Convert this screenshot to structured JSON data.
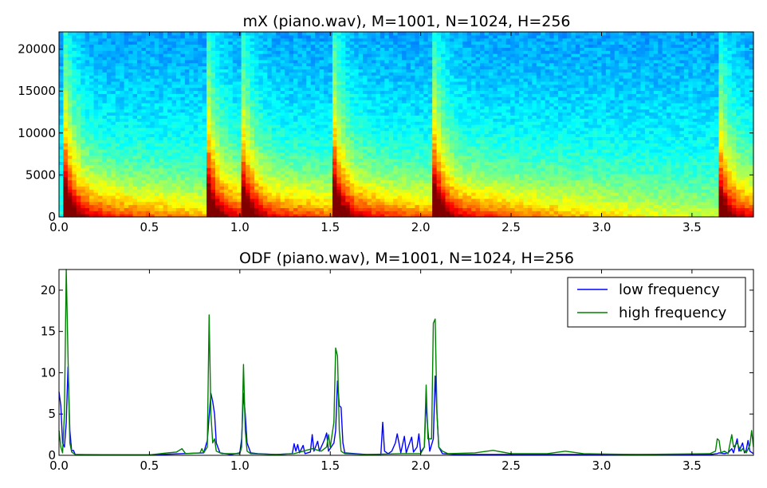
{
  "chart_data": [
    {
      "type": "heatmap",
      "title": "mX (piano.wav), M=1001, N=1024, H=256",
      "xlabel": "",
      "ylabel": "",
      "xlim": [
        0.0,
        3.84
      ],
      "ylim": [
        0,
        22050
      ],
      "xticks": [
        0.0,
        0.5,
        1.0,
        1.5,
        2.0,
        2.5,
        3.0,
        3.5
      ],
      "xtick_labels": [
        "0.0",
        "0.5",
        "1.0",
        "1.5",
        "2.0",
        "2.5",
        "3.0",
        "3.5"
      ],
      "yticks": [
        0,
        5000,
        10000,
        15000,
        20000
      ],
      "ytick_labels": [
        "0",
        "5000",
        "10000",
        "15000",
        "20000"
      ],
      "colormap": "jet",
      "note_onsets": [
        0.04,
        0.83,
        1.02,
        1.53,
        2.08,
        3.65
      ]
    },
    {
      "type": "line",
      "title": "ODF (piano.wav), M=1001, N=1024, H=256",
      "xlabel": "",
      "ylabel": "",
      "xlim": [
        0.0,
        3.84
      ],
      "ylim": [
        0,
        22.5
      ],
      "xticks": [
        0.0,
        0.5,
        1.0,
        1.5,
        2.0,
        2.5,
        3.0,
        3.5
      ],
      "xtick_labels": [
        "0.0",
        "0.5",
        "1.0",
        "1.5",
        "2.0",
        "2.5",
        "3.0",
        "3.5"
      ],
      "yticks": [
        0,
        5,
        10,
        15,
        20
      ],
      "ytick_labels": [
        "0",
        "5",
        "10",
        "15",
        "20"
      ],
      "grid": false,
      "legend_position": "top-right",
      "series": [
        {
          "name": "low frequency",
          "color": "#0000ff",
          "points": [
            [
              0.0,
              7.7
            ],
            [
              0.01,
              6.0
            ],
            [
              0.02,
              1.5
            ],
            [
              0.03,
              1.0
            ],
            [
              0.04,
              4.0
            ],
            [
              0.05,
              10.7
            ],
            [
              0.06,
              3.0
            ],
            [
              0.07,
              0.5
            ],
            [
              0.08,
              0.6
            ],
            [
              0.09,
              0.1
            ],
            [
              0.2,
              0.05
            ],
            [
              0.5,
              0.05
            ],
            [
              0.8,
              0.3
            ],
            [
              0.82,
              1.8
            ],
            [
              0.84,
              7.5
            ],
            [
              0.85,
              6.5
            ],
            [
              0.86,
              5.0
            ],
            [
              0.87,
              1.5
            ],
            [
              0.89,
              0.3
            ],
            [
              0.95,
              0.1
            ],
            [
              1.0,
              0.3
            ],
            [
              1.01,
              2.0
            ],
            [
              1.02,
              7.5
            ],
            [
              1.03,
              5.0
            ],
            [
              1.04,
              1.5
            ],
            [
              1.06,
              0.3
            ],
            [
              1.1,
              0.2
            ],
            [
              1.2,
              0.1
            ],
            [
              1.29,
              0.2
            ],
            [
              1.3,
              1.4
            ],
            [
              1.31,
              0.5
            ],
            [
              1.32,
              1.3
            ],
            [
              1.33,
              0.3
            ],
            [
              1.35,
              1.2
            ],
            [
              1.36,
              0.2
            ],
            [
              1.39,
              0.4
            ],
            [
              1.4,
              2.5
            ],
            [
              1.41,
              0.5
            ],
            [
              1.43,
              1.7
            ],
            [
              1.44,
              0.5
            ],
            [
              1.46,
              1.5
            ],
            [
              1.47,
              2.0
            ],
            [
              1.48,
              2.7
            ],
            [
              1.49,
              0.5
            ],
            [
              1.52,
              1.5
            ],
            [
              1.53,
              3.0
            ],
            [
              1.54,
              9.0
            ],
            [
              1.55,
              6.0
            ],
            [
              1.56,
              5.8
            ],
            [
              1.57,
              1.5
            ],
            [
              1.58,
              0.3
            ],
            [
              1.7,
              0.1
            ],
            [
              1.78,
              0.1
            ],
            [
              1.79,
              4.0
            ],
            [
              1.8,
              0.5
            ],
            [
              1.82,
              0.2
            ],
            [
              1.84,
              0.5
            ],
            [
              1.86,
              1.5
            ],
            [
              1.87,
              2.6
            ],
            [
              1.88,
              1.5
            ],
            [
              1.89,
              0.3
            ],
            [
              1.91,
              2.3
            ],
            [
              1.92,
              0.3
            ],
            [
              1.95,
              2.2
            ],
            [
              1.96,
              0.4
            ],
            [
              1.98,
              1.0
            ],
            [
              1.99,
              2.6
            ],
            [
              2.0,
              0.4
            ],
            [
              2.02,
              1.0
            ],
            [
              2.03,
              6.5
            ],
            [
              2.04,
              3.0
            ],
            [
              2.05,
              0.5
            ],
            [
              2.07,
              2.0
            ],
            [
              2.08,
              9.6
            ],
            [
              2.09,
              5.0
            ],
            [
              2.1,
              1.0
            ],
            [
              2.12,
              0.2
            ],
            [
              2.2,
              0.1
            ],
            [
              3.0,
              0.1
            ],
            [
              3.6,
              0.1
            ],
            [
              3.64,
              0.2
            ],
            [
              3.65,
              0.3
            ],
            [
              3.68,
              0.2
            ],
            [
              3.7,
              0.3
            ],
            [
              3.72,
              0.8
            ],
            [
              3.73,
              0.3
            ],
            [
              3.75,
              2.0
            ],
            [
              3.76,
              0.5
            ],
            [
              3.78,
              1.5
            ],
            [
              3.79,
              0.3
            ],
            [
              3.8,
              0.6
            ],
            [
              3.81,
              1.8
            ],
            [
              3.82,
              0.5
            ],
            [
              3.84,
              0.2
            ]
          ]
        },
        {
          "name": "high frequency",
          "color": "#008000",
          "points": [
            [
              0.0,
              3.0
            ],
            [
              0.01,
              1.0
            ],
            [
              0.02,
              0.3
            ],
            [
              0.03,
              5.0
            ],
            [
              0.04,
              22.5
            ],
            [
              0.05,
              12.0
            ],
            [
              0.06,
              1.5
            ],
            [
              0.07,
              0.4
            ],
            [
              0.09,
              0.1
            ],
            [
              0.5,
              0.05
            ],
            [
              0.6,
              0.3
            ],
            [
              0.65,
              0.4
            ],
            [
              0.68,
              0.8
            ],
            [
              0.7,
              0.2
            ],
            [
              0.78,
              0.3
            ],
            [
              0.79,
              0.8
            ],
            [
              0.8,
              0.3
            ],
            [
              0.82,
              1.0
            ],
            [
              0.83,
              17.0
            ],
            [
              0.84,
              5.0
            ],
            [
              0.85,
              1.5
            ],
            [
              0.86,
              2.0
            ],
            [
              0.87,
              0.5
            ],
            [
              0.9,
              0.2
            ],
            [
              1.0,
              0.2
            ],
            [
              1.01,
              1.0
            ],
            [
              1.02,
              11.0
            ],
            [
              1.03,
              3.0
            ],
            [
              1.04,
              0.5
            ],
            [
              1.06,
              0.2
            ],
            [
              1.2,
              0.1
            ],
            [
              1.3,
              0.2
            ],
            [
              1.35,
              0.5
            ],
            [
              1.4,
              0.8
            ],
            [
              1.45,
              0.5
            ],
            [
              1.48,
              1.0
            ],
            [
              1.49,
              2.5
            ],
            [
              1.5,
              1.0
            ],
            [
              1.52,
              4.0
            ],
            [
              1.53,
              13.0
            ],
            [
              1.54,
              12.0
            ],
            [
              1.55,
              3.0
            ],
            [
              1.56,
              0.5
            ],
            [
              1.58,
              0.2
            ],
            [
              1.7,
              0.1
            ],
            [
              1.9,
              0.2
            ],
            [
              2.0,
              0.2
            ],
            [
              2.02,
              1.0
            ],
            [
              2.03,
              8.5
            ],
            [
              2.04,
              2.0
            ],
            [
              2.06,
              2.0
            ],
            [
              2.07,
              16.0
            ],
            [
              2.08,
              16.5
            ],
            [
              2.09,
              5.0
            ],
            [
              2.1,
              1.0
            ],
            [
              2.12,
              0.5
            ],
            [
              2.15,
              0.2
            ],
            [
              2.3,
              0.3
            ],
            [
              2.4,
              0.6
            ],
            [
              2.5,
              0.2
            ],
            [
              2.7,
              0.2
            ],
            [
              2.8,
              0.5
            ],
            [
              2.9,
              0.2
            ],
            [
              3.2,
              0.1
            ],
            [
              3.6,
              0.2
            ],
            [
              3.63,
              0.5
            ],
            [
              3.64,
              2.0
            ],
            [
              3.65,
              1.8
            ],
            [
              3.66,
              0.3
            ],
            [
              3.68,
              0.5
            ],
            [
              3.7,
              0.2
            ],
            [
              3.72,
              2.5
            ],
            [
              3.73,
              1.0
            ],
            [
              3.75,
              1.5
            ],
            [
              3.77,
              0.5
            ],
            [
              3.78,
              0.8
            ],
            [
              3.8,
              0.3
            ],
            [
              3.82,
              1.2
            ],
            [
              3.83,
              3.0
            ],
            [
              3.84,
              1.0
            ]
          ]
        }
      ]
    }
  ]
}
